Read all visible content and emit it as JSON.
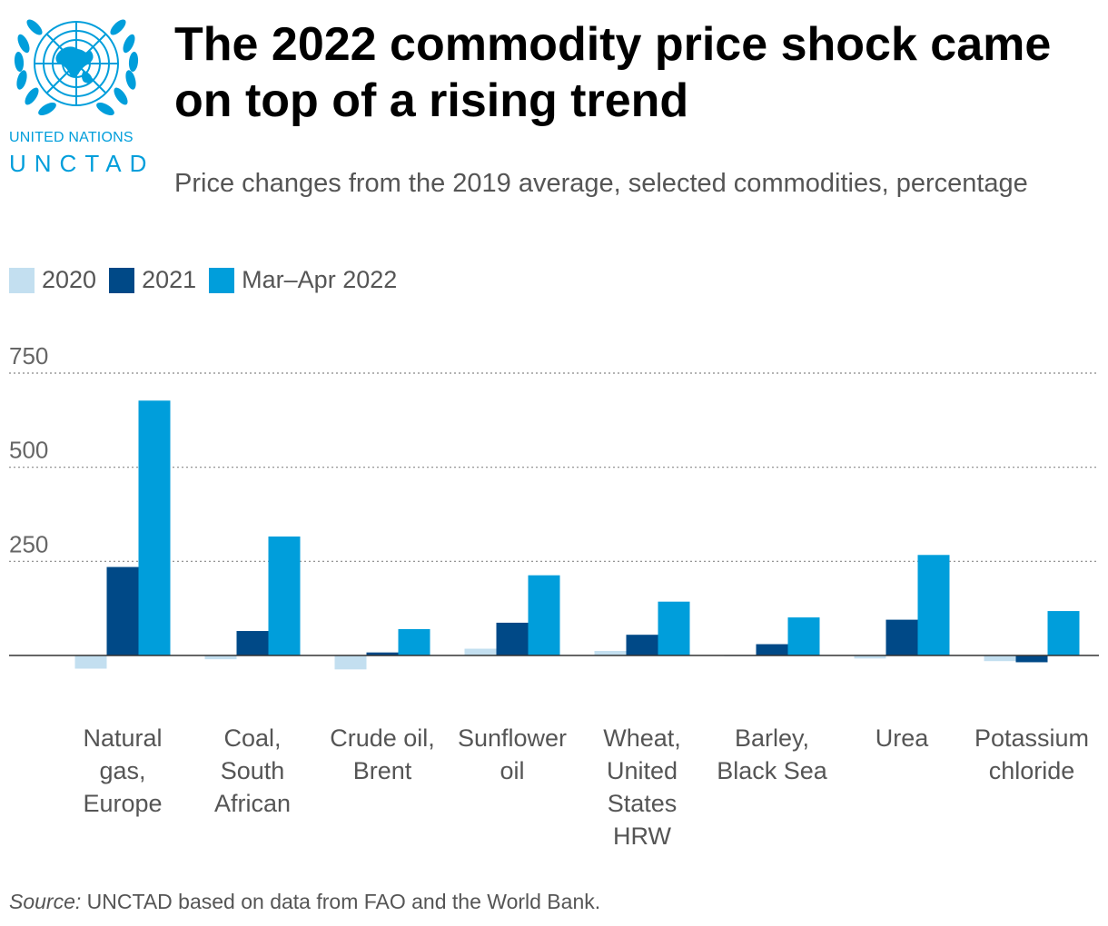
{
  "logo": {
    "line1": "UNITED NATIONS",
    "line2": "UNCTAD",
    "color": "#009edb"
  },
  "title": "The 2022 commodity price shock came on top of a rising trend",
  "subtitle": "Price changes from the 2019 average, selected commodities, percentage",
  "source": {
    "label": "Source:",
    "text": " UNCTAD based on data from FAO and the World Bank."
  },
  "chart_data": {
    "type": "bar",
    "categories": [
      [
        "Natural",
        "gas,",
        "Europe"
      ],
      [
        "Coal,",
        "South",
        "African"
      ],
      [
        "Crude oil,",
        "Brent"
      ],
      [
        "Sunflower",
        "oil"
      ],
      [
        "Wheat,",
        "United",
        "States",
        "HRW"
      ],
      [
        "Barley,",
        "Black Sea"
      ],
      [
        "Urea"
      ],
      [
        "Potassium",
        "chloride"
      ]
    ],
    "series": [
      {
        "name": "2020",
        "color": "#c3dff0",
        "values": [
          -35,
          -10,
          -37,
          18,
          12,
          -2,
          -8,
          -15
        ]
      },
      {
        "name": "2021",
        "color": "#004987",
        "values": [
          235,
          65,
          8,
          87,
          55,
          30,
          95,
          -18
        ]
      },
      {
        "name": "Mar–Apr 2022",
        "color": "#009edb",
        "values": [
          677,
          316,
          70,
          213,
          143,
          101,
          267,
          118
        ]
      }
    ],
    "yticks": [
      750,
      500,
      250
    ],
    "ylim": [
      -50,
      750
    ],
    "grid": true,
    "legend": "top-left"
  }
}
